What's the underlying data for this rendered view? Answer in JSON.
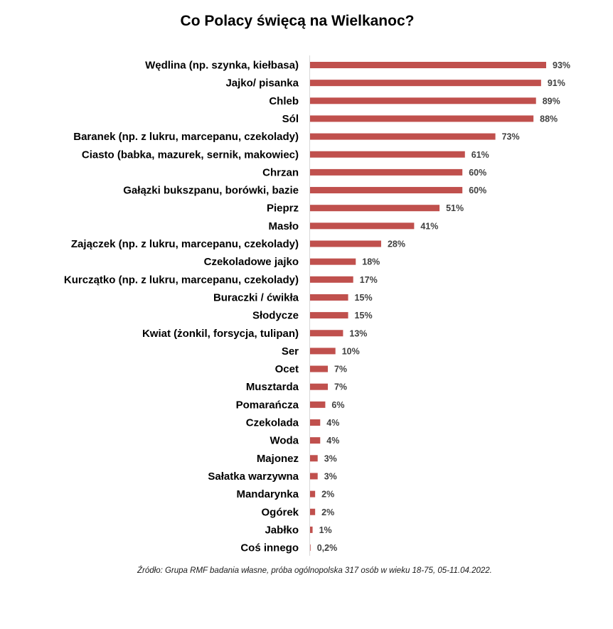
{
  "chart_data": {
    "type": "bar",
    "orientation": "horizontal",
    "title": "Co Polacy święcą na Wielkanoc?",
    "xlabel": "",
    "ylabel": "",
    "xlim": [
      0,
      100
    ],
    "grid": false,
    "bar_color": "#c0504d",
    "categories": [
      "Wędlina (np. szynka, kiełbasa)",
      "Jajko/ pisanka",
      "Chleb",
      "Sól",
      "Baranek (np. z lukru, marcepanu, czekolady)",
      "Ciasto (babka, mazurek, sernik, makowiec)",
      "Chrzan",
      "Gałązki bukszpanu, borówki, bazie",
      "Pieprz",
      "Masło",
      "Zajączek (np. z lukru, marcepanu, czekolady)",
      "Czekoladowe jajko",
      "Kurczątko (np. z lukru, marcepanu, czekolady)",
      "Buraczki / ćwikła",
      "Słodycze",
      "Kwiat (żonkil, forsycja, tulipan)",
      "Ser",
      "Ocet",
      "Musztarda",
      "Pomarańcza",
      "Czekolada",
      "Woda",
      "Majonez",
      "Sałatka warzywna",
      "Mandarynka",
      "Ogórek",
      "Jabłko",
      "Coś innego"
    ],
    "values": [
      93,
      91,
      89,
      88,
      73,
      61,
      60,
      60,
      51,
      41,
      28,
      18,
      17,
      15,
      15,
      13,
      10,
      7,
      7,
      6,
      4,
      4,
      3,
      3,
      2,
      2,
      1,
      0.2
    ],
    "value_labels": [
      "93%",
      "91%",
      "89%",
      "88%",
      "73%",
      "61%",
      "60%",
      "60%",
      "51%",
      "41%",
      "28%",
      "18%",
      "17%",
      "15%",
      "15%",
      "13%",
      "10%",
      "7%",
      "7%",
      "6%",
      "4%",
      "4%",
      "3%",
      "3%",
      "2%",
      "2%",
      "1%",
      "0,2%"
    ]
  },
  "source": "Źródło: Grupa RMF badania własne, próba ogólnopolska 317 osób w wieku 18-75, 05-11.04.2022."
}
